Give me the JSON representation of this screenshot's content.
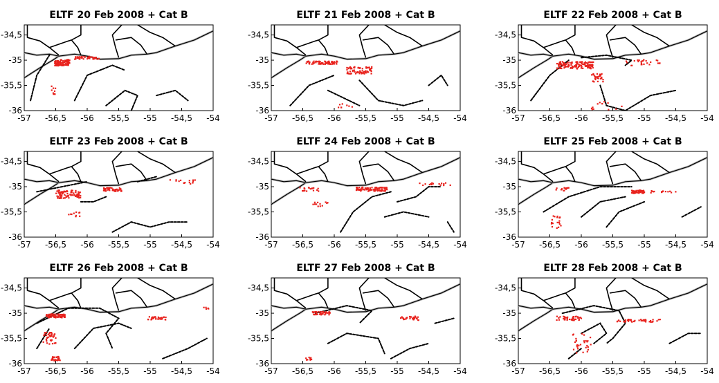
{
  "figure": {
    "colors": {
      "particles": "#e8221d",
      "ftle_ridges": "#000000",
      "coastline": "#b0b0b0"
    }
  },
  "chart_data": [
    {
      "type": "scatter",
      "title": "ELTF 20 Feb 2008 + Cat B",
      "xlim": [
        -57,
        -54
      ],
      "ylim": [
        -36,
        -34.3
      ],
      "xticks": [
        "-57",
        "-56,5",
        "-56",
        "-55,5",
        "-55",
        "-54,5",
        "-54"
      ],
      "yticks": [
        "-34,5",
        "-35",
        "-35,5",
        "-36"
      ],
      "series": [
        {
          "color": "#e8221d",
          "clusters": [
            {
              "cx": -56.4,
              "cy": -35.05,
              "sx": 0.12,
              "sy": 0.06,
              "n": 90
            },
            {
              "cx": -56.0,
              "cy": -34.95,
              "sx": 0.2,
              "sy": 0.03,
              "n": 40
            },
            {
              "cx": -56.55,
              "cy": -35.6,
              "sx": 0.05,
              "sy": 0.1,
              "n": 10
            }
          ]
        }
      ],
      "ridges": [
        [
          [
            -56.9,
            -35.8
          ],
          [
            -56.8,
            -35.3
          ],
          [
            -56.6,
            -34.9
          ]
        ],
        [
          [
            -56.2,
            -35.8
          ],
          [
            -56.0,
            -35.3
          ],
          [
            -55.6,
            -35.1
          ],
          [
            -55.4,
            -35.2
          ]
        ],
        [
          [
            -55.7,
            -35.9
          ],
          [
            -55.4,
            -35.6
          ],
          [
            -55.2,
            -35.7
          ],
          [
            -55.3,
            -36.0
          ]
        ],
        [
          [
            -54.9,
            -35.7
          ],
          [
            -54.6,
            -35.6
          ],
          [
            -54.4,
            -35.8
          ]
        ]
      ]
    },
    {
      "type": "scatter",
      "title": "ELTF 21 Feb 2008 + Cat B",
      "xlim": [
        -57,
        -54
      ],
      "ylim": [
        -36,
        -34.3
      ],
      "xticks": [
        "-57",
        "-56,5",
        "-56",
        "-55,5",
        "-55",
        "-54,5",
        "-54"
      ],
      "yticks": [
        "-34,5",
        "-35",
        "-35,5",
        "-36"
      ],
      "series": [
        {
          "color": "#e8221d",
          "clusters": [
            {
              "cx": -56.2,
              "cy": -35.05,
              "sx": 0.25,
              "sy": 0.03,
              "n": 70
            },
            {
              "cx": -55.6,
              "cy": -35.2,
              "sx": 0.2,
              "sy": 0.07,
              "n": 70
            },
            {
              "cx": -55.8,
              "cy": -35.9,
              "sx": 0.15,
              "sy": 0.04,
              "n": 8
            }
          ]
        }
      ],
      "ridges": [
        [
          [
            -56.7,
            -35.9
          ],
          [
            -56.4,
            -35.5
          ],
          [
            -56.0,
            -35.3
          ]
        ],
        [
          [
            -55.6,
            -35.4
          ],
          [
            -55.3,
            -35.8
          ],
          [
            -54.9,
            -35.9
          ],
          [
            -54.6,
            -35.8
          ]
        ],
        [
          [
            -54.5,
            -35.5
          ],
          [
            -54.3,
            -35.3
          ],
          [
            -54.2,
            -35.5
          ]
        ],
        [
          [
            -56.1,
            -35.6
          ],
          [
            -55.6,
            -35.9
          ]
        ]
      ]
    },
    {
      "type": "scatter",
      "title": "ELTF 22 Feb 2008 + Cat B",
      "xlim": [
        -57,
        -54
      ],
      "ylim": [
        -36,
        -34.3
      ],
      "xticks": [
        "-57",
        "-56,5",
        "-56",
        "-55,5",
        "-55",
        "-54,5",
        "-54"
      ],
      "yticks": [
        "-34,5",
        "-35",
        "-35,5",
        "-36"
      ],
      "series": [
        {
          "color": "#e8221d",
          "clusters": [
            {
              "cx": -56.1,
              "cy": -35.1,
              "sx": 0.3,
              "sy": 0.07,
              "n": 130
            },
            {
              "cx": -55.75,
              "cy": -35.35,
              "sx": 0.1,
              "sy": 0.08,
              "n": 30
            },
            {
              "cx": -55.0,
              "cy": -35.05,
              "sx": 0.3,
              "sy": 0.06,
              "n": 25
            },
            {
              "cx": -55.6,
              "cy": -35.9,
              "sx": 0.25,
              "sy": 0.08,
              "n": 12
            }
          ]
        }
      ],
      "ridges": [
        [
          [
            -56.8,
            -35.8
          ],
          [
            -56.5,
            -35.3
          ],
          [
            -56.2,
            -35.0
          ]
        ],
        [
          [
            -55.7,
            -35.5
          ],
          [
            -55.6,
            -35.9
          ],
          [
            -55.3,
            -36.0
          ],
          [
            -54.9,
            -35.7
          ],
          [
            -54.5,
            -35.6
          ]
        ],
        [
          [
            -56.0,
            -34.95
          ],
          [
            -55.6,
            -34.9
          ],
          [
            -55.2,
            -35.0
          ],
          [
            -55.3,
            -35.1
          ]
        ]
      ]
    },
    {
      "type": "scatter",
      "title": "ELTF 23 Feb 2008 + Cat B",
      "xlim": [
        -57,
        -54
      ],
      "ylim": [
        -36,
        -34.3
      ],
      "xticks": [
        "-57",
        "-56,5",
        "-56",
        "-55,5",
        "-55",
        "-54,5",
        "-54"
      ],
      "yticks": [
        "-34,5",
        "-35",
        "-35,5",
        "-36"
      ],
      "series": [
        {
          "color": "#e8221d",
          "clusters": [
            {
              "cx": -56.3,
              "cy": -35.15,
              "sx": 0.2,
              "sy": 0.08,
              "n": 90
            },
            {
              "cx": -55.6,
              "cy": -35.05,
              "sx": 0.15,
              "sy": 0.04,
              "n": 50
            },
            {
              "cx": -54.5,
              "cy": -34.9,
              "sx": 0.25,
              "sy": 0.05,
              "n": 15
            },
            {
              "cx": -56.2,
              "cy": -35.55,
              "sx": 0.1,
              "sy": 0.05,
              "n": 10
            }
          ]
        }
      ],
      "ridges": [
        [
          [
            -56.8,
            -35.1
          ],
          [
            -56.4,
            -35.0
          ],
          [
            -56.0,
            -34.9
          ]
        ],
        [
          [
            -56.1,
            -35.3
          ],
          [
            -55.9,
            -35.3
          ],
          [
            -55.7,
            -35.2
          ]
        ],
        [
          [
            -55.6,
            -35.9
          ],
          [
            -55.3,
            -35.7
          ],
          [
            -55.0,
            -35.8
          ],
          [
            -54.7,
            -35.7
          ],
          [
            -54.4,
            -35.7
          ]
        ],
        [
          [
            -55.2,
            -34.9
          ],
          [
            -54.9,
            -34.8
          ]
        ]
      ]
    },
    {
      "type": "scatter",
      "title": "ELTF 24 Feb 2008 + Cat B",
      "xlim": [
        -57,
        -54
      ],
      "ylim": [
        -36,
        -34.3
      ],
      "xticks": [
        "-57",
        "-56,5",
        "-56",
        "-55,5",
        "-55",
        "-54,5",
        "-54"
      ],
      "yticks": [
        "-34,5",
        "-35",
        "-35,5",
        "-36"
      ],
      "series": [
        {
          "color": "#e8221d",
          "clusters": [
            {
              "cx": -55.4,
              "cy": -35.05,
              "sx": 0.25,
              "sy": 0.04,
              "n": 90
            },
            {
              "cx": -56.4,
              "cy": -35.05,
              "sx": 0.15,
              "sy": 0.04,
              "n": 20
            },
            {
              "cx": -56.2,
              "cy": -35.35,
              "sx": 0.15,
              "sy": 0.05,
              "n": 12
            },
            {
              "cx": -54.4,
              "cy": -34.95,
              "sx": 0.25,
              "sy": 0.03,
              "n": 15
            }
          ]
        }
      ],
      "ridges": [
        [
          [
            -55.9,
            -35.9
          ],
          [
            -55.7,
            -35.5
          ],
          [
            -55.4,
            -35.2
          ],
          [
            -55.1,
            -35.1
          ]
        ],
        [
          [
            -55.0,
            -35.3
          ],
          [
            -54.7,
            -35.2
          ],
          [
            -54.5,
            -35.0
          ],
          [
            -54.3,
            -35.0
          ]
        ],
        [
          [
            -55.2,
            -35.6
          ],
          [
            -54.9,
            -35.5
          ],
          [
            -54.5,
            -35.6
          ]
        ],
        [
          [
            -54.2,
            -35.7
          ],
          [
            -54.1,
            -35.9
          ]
        ]
      ]
    },
    {
      "type": "scatter",
      "title": "ELTF 25 Feb 2008 + Cat B",
      "xlim": [
        -57,
        -54
      ],
      "ylim": [
        -36,
        -34.3
      ],
      "xticks": [
        "-57",
        "-56,5",
        "-56",
        "-55,5",
        "-55",
        "-54,5",
        "-54"
      ],
      "yticks": [
        "-34,5",
        "-35",
        "-35,5",
        "-36"
      ],
      "series": [
        {
          "color": "#e8221d",
          "clusters": [
            {
              "cx": -55.1,
              "cy": -35.1,
              "sx": 0.1,
              "sy": 0.03,
              "n": 60
            },
            {
              "cx": -56.3,
              "cy": -35.05,
              "sx": 0.1,
              "sy": 0.03,
              "n": 15
            },
            {
              "cx": -56.4,
              "cy": -35.7,
              "sx": 0.08,
              "sy": 0.12,
              "n": 20
            },
            {
              "cx": -54.7,
              "cy": -35.1,
              "sx": 0.2,
              "sy": 0.02,
              "n": 15
            }
          ]
        }
      ],
      "ridges": [
        [
          [
            -56.6,
            -35.5
          ],
          [
            -56.2,
            -35.2
          ],
          [
            -55.7,
            -35.0
          ],
          [
            -55.2,
            -35.0
          ]
        ],
        [
          [
            -56.0,
            -35.6
          ],
          [
            -55.7,
            -35.3
          ],
          [
            -55.3,
            -35.2
          ]
        ],
        [
          [
            -55.6,
            -35.8
          ],
          [
            -55.4,
            -35.5
          ],
          [
            -55.0,
            -35.3
          ]
        ],
        [
          [
            -54.4,
            -35.6
          ],
          [
            -54.1,
            -35.4
          ]
        ]
      ]
    },
    {
      "type": "scatter",
      "title": "ELTF 26 Feb 2008 + Cat B",
      "xlim": [
        -57,
        -54
      ],
      "ylim": [
        -36,
        -34.3
      ],
      "xticks": [
        "-57",
        "-56,5",
        "-56",
        "-55,5",
        "-55",
        "-54,5",
        "-54"
      ],
      "yticks": [
        "-34,5",
        "-35",
        "-35,5",
        "-36"
      ],
      "series": [
        {
          "color": "#e8221d",
          "clusters": [
            {
              "cx": -56.5,
              "cy": -35.05,
              "sx": 0.15,
              "sy": 0.04,
              "n": 70
            },
            {
              "cx": -56.6,
              "cy": -35.5,
              "sx": 0.1,
              "sy": 0.12,
              "n": 40
            },
            {
              "cx": -56.5,
              "cy": -35.9,
              "sx": 0.07,
              "sy": 0.04,
              "n": 25
            },
            {
              "cx": -54.9,
              "cy": -35.1,
              "sx": 0.15,
              "sy": 0.03,
              "n": 30
            },
            {
              "cx": -54.1,
              "cy": -34.9,
              "sx": 0.05,
              "sy": 0.02,
              "n": 5
            }
          ]
        }
      ],
      "ridges": [
        [
          [
            -56.8,
            -35.2
          ],
          [
            -56.3,
            -34.9
          ],
          [
            -55.8,
            -34.9
          ],
          [
            -55.5,
            -35.1
          ],
          [
            -55.7,
            -35.4
          ],
          [
            -55.6,
            -35.7
          ]
        ],
        [
          [
            -56.2,
            -35.7
          ],
          [
            -55.9,
            -35.3
          ],
          [
            -55.5,
            -35.2
          ],
          [
            -55.3,
            -35.3
          ]
        ],
        [
          [
            -56.8,
            -35.7
          ],
          [
            -56.6,
            -35.3
          ]
        ],
        [
          [
            -54.8,
            -35.9
          ],
          [
            -54.4,
            -35.7
          ],
          [
            -54.1,
            -35.5
          ]
        ]
      ]
    },
    {
      "type": "scatter",
      "title": "ELTF 27 Feb 2008 + Cat B",
      "xlim": [
        -57,
        -54
      ],
      "ylim": [
        -36,
        -34.3
      ],
      "xticks": [
        "-57",
        "-56,5",
        "-56",
        "-55,5",
        "-55",
        "-54,5",
        "-54"
      ],
      "yticks": [
        "-34,5",
        "-35",
        "-35,5",
        "-36"
      ],
      "series": [
        {
          "color": "#e8221d",
          "clusters": [
            {
              "cx": -56.2,
              "cy": -35.0,
              "sx": 0.15,
              "sy": 0.03,
              "n": 40
            },
            {
              "cx": -54.8,
              "cy": -35.1,
              "sx": 0.15,
              "sy": 0.04,
              "n": 30
            },
            {
              "cx": -56.4,
              "cy": -35.9,
              "sx": 0.05,
              "sy": 0.03,
              "n": 10
            }
          ]
        }
      ],
      "ridges": [
        [
          [
            -56.3,
            -35.0
          ],
          [
            -55.8,
            -34.85
          ],
          [
            -55.4,
            -34.95
          ],
          [
            -55.6,
            -35.2
          ]
        ],
        [
          [
            -56.1,
            -35.6
          ],
          [
            -55.8,
            -35.4
          ],
          [
            -55.3,
            -35.5
          ],
          [
            -55.2,
            -35.8
          ]
        ],
        [
          [
            -55.1,
            -35.9
          ],
          [
            -54.8,
            -35.7
          ],
          [
            -54.5,
            -35.6
          ]
        ],
        [
          [
            -54.4,
            -35.2
          ],
          [
            -54.1,
            -35.1
          ]
        ]
      ]
    },
    {
      "type": "scatter",
      "title": "ELTF 28 Feb 2008 + Cat B",
      "xlim": [
        -57,
        -54
      ],
      "ylim": [
        -36,
        -34.3
      ],
      "xticks": [
        "-57",
        "-56,5",
        "-56",
        "-55,5",
        "-55",
        "-54,5",
        "-54"
      ],
      "yticks": [
        "-34,5",
        "-35",
        "-35,5",
        "-36"
      ],
      "series": [
        {
          "color": "#e8221d",
          "clusters": [
            {
              "cx": -56.2,
              "cy": -35.1,
              "sx": 0.2,
              "sy": 0.04,
              "n": 40
            },
            {
              "cx": -55.1,
              "cy": -35.15,
              "sx": 0.35,
              "sy": 0.03,
              "n": 40
            },
            {
              "cx": -56.0,
              "cy": -35.6,
              "sx": 0.15,
              "sy": 0.2,
              "n": 30
            }
          ]
        }
      ],
      "ridges": [
        [
          [
            -56.3,
            -35.0
          ],
          [
            -55.8,
            -34.85
          ],
          [
            -55.4,
            -34.95
          ],
          [
            -55.3,
            -35.2
          ],
          [
            -55.5,
            -35.5
          ],
          [
            -55.6,
            -35.6
          ]
        ],
        [
          [
            -56.0,
            -35.4
          ],
          [
            -55.7,
            -35.2
          ],
          [
            -55.6,
            -35.4
          ],
          [
            -55.8,
            -35.6
          ]
        ],
        [
          [
            -54.6,
            -35.6
          ],
          [
            -54.3,
            -35.4
          ],
          [
            -54.1,
            -35.4
          ]
        ],
        [
          [
            -56.2,
            -35.9
          ],
          [
            -56.0,
            -35.7
          ]
        ]
      ]
    }
  ]
}
